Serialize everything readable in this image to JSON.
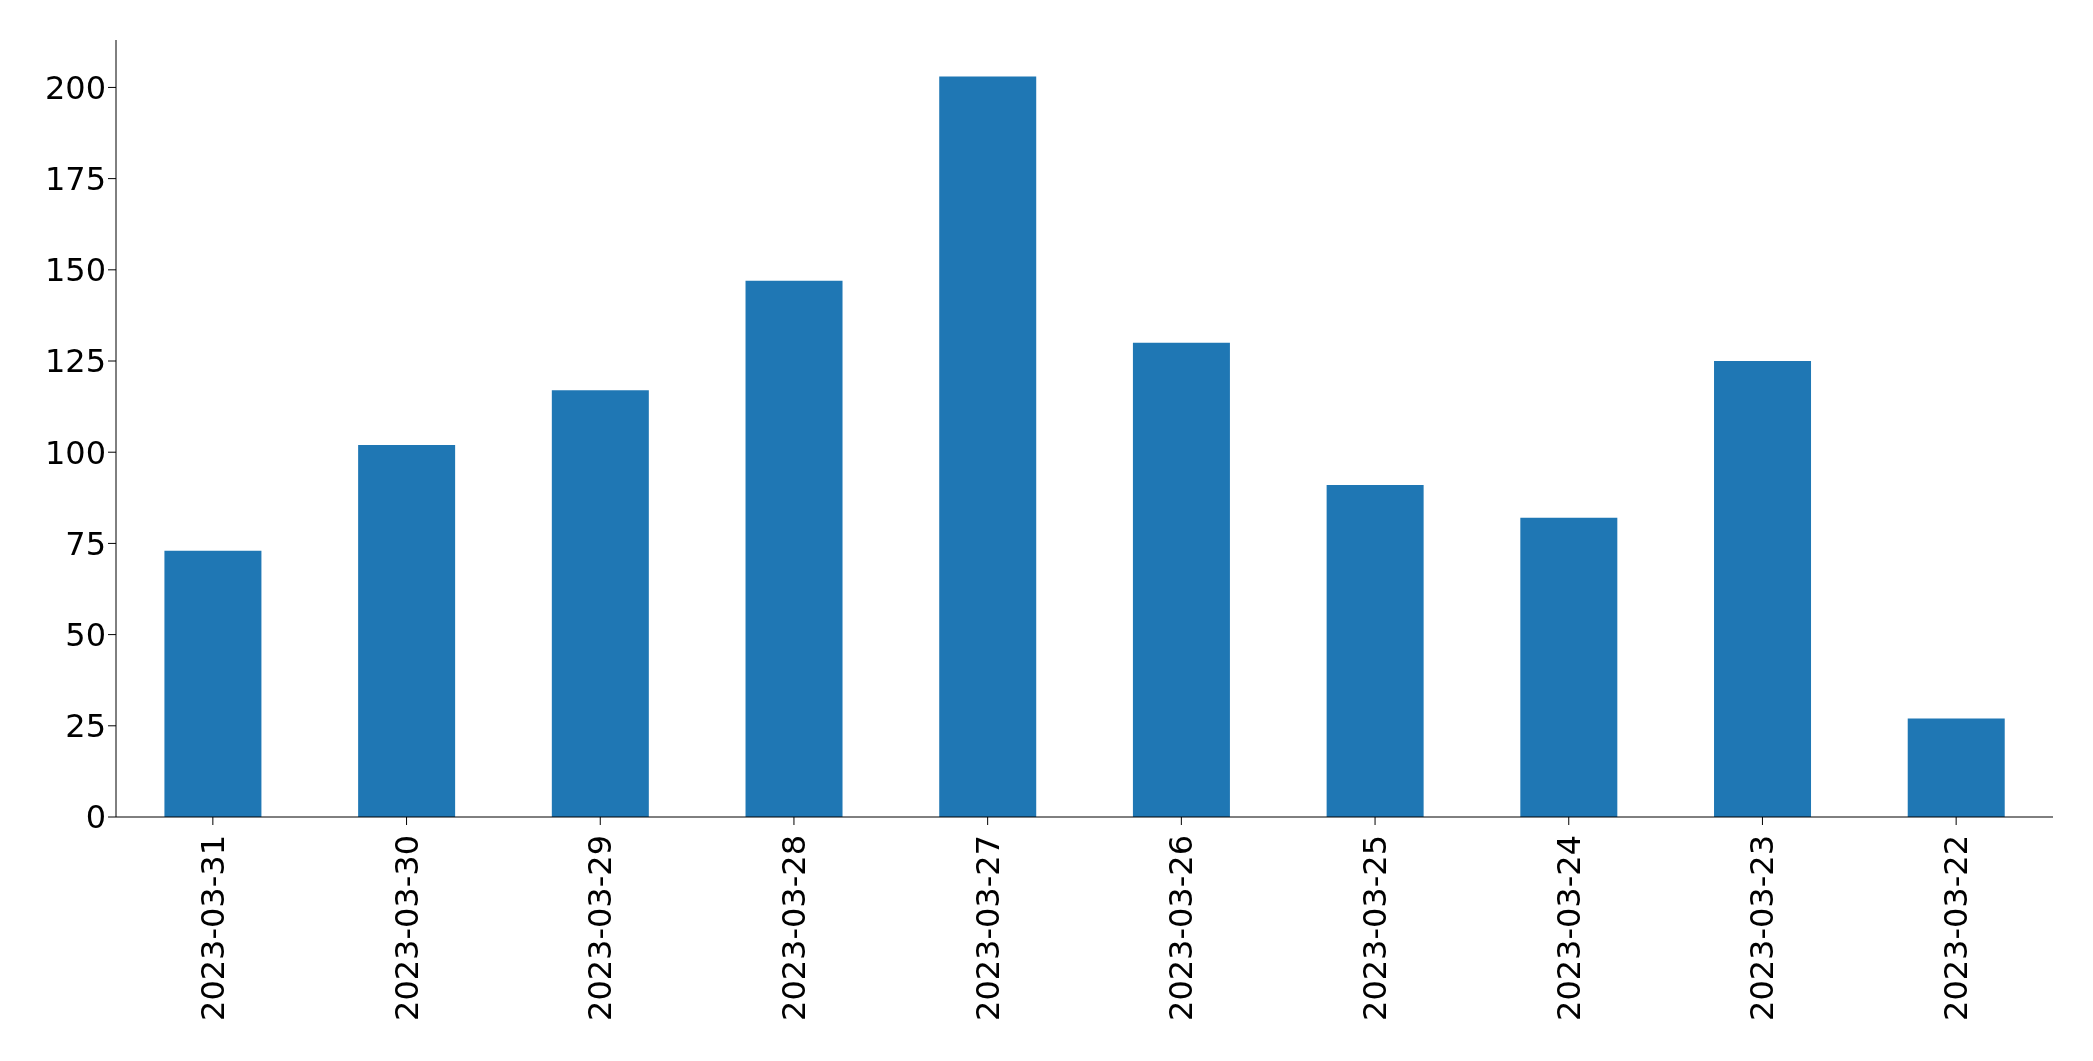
{
  "chart_data": {
    "type": "bar",
    "categories": [
      "2023-03-31",
      "2023-03-30",
      "2023-03-29",
      "2023-03-28",
      "2023-03-27",
      "2023-03-26",
      "2023-03-25",
      "2023-03-24",
      "2023-03-23",
      "2023-03-22"
    ],
    "values": [
      73,
      102,
      117,
      147,
      203,
      130,
      91,
      82,
      125,
      27
    ],
    "color": "#1f77b4",
    "ylim": [
      0,
      213
    ],
    "yticks": [
      0,
      25,
      50,
      75,
      100,
      125,
      150,
      175,
      200
    ],
    "grid": false,
    "legend": false
  }
}
